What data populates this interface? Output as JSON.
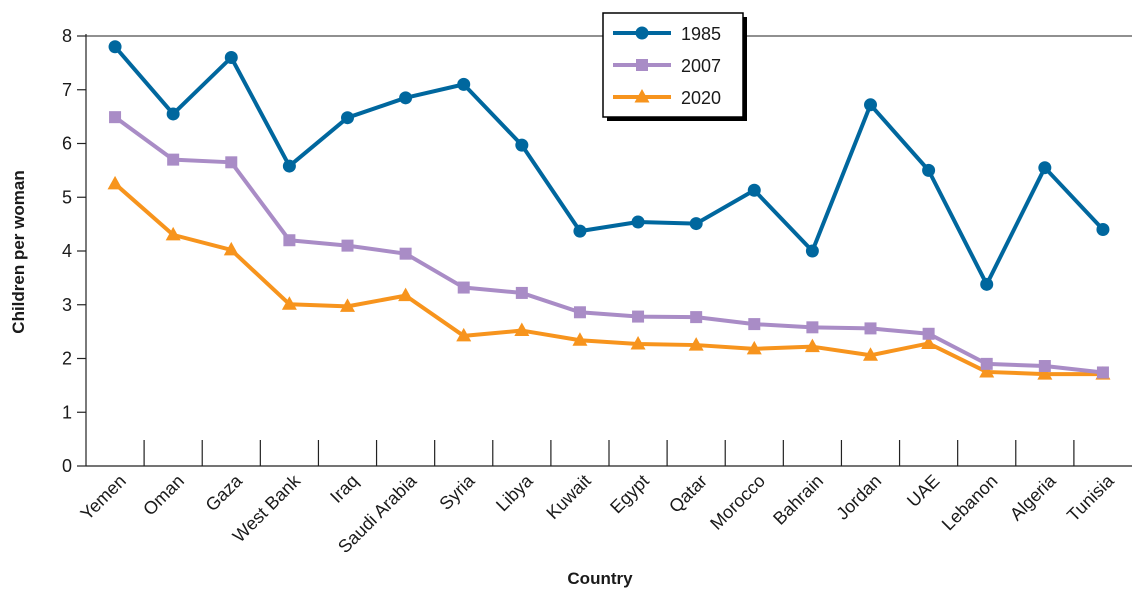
{
  "chart_data": {
    "type": "line",
    "title": "",
    "xlabel": "Country",
    "ylabel": "Children per woman",
    "ylim": [
      0,
      8
    ],
    "yticks": [
      0,
      1,
      2,
      3,
      4,
      5,
      6,
      7,
      8
    ],
    "grid": false,
    "legend_position": "top-center",
    "categories": [
      "Yemen",
      "Oman",
      "Gaza",
      "West Bank",
      "Iraq",
      "Saudi Arabia",
      "Syria",
      "Libya",
      "Kuwait",
      "Egypt",
      "Qatar",
      "Morocco",
      "Bahrain",
      "Jordan",
      "UAE",
      "Lebanon",
      "Algeria",
      "Tunisia"
    ],
    "series": [
      {
        "name": "1985",
        "marker": "circle",
        "color": "#00679e",
        "values": [
          7.8,
          6.55,
          7.6,
          5.58,
          6.48,
          6.85,
          7.1,
          5.97,
          4.37,
          4.54,
          4.51,
          5.13,
          4.0,
          6.72,
          5.5,
          3.38,
          5.55,
          4.4
        ]
      },
      {
        "name": "2007",
        "marker": "square",
        "color": "#a98cc6",
        "values": [
          6.49,
          5.7,
          5.65,
          4.2,
          4.1,
          3.95,
          3.32,
          3.22,
          2.86,
          2.78,
          2.77,
          2.64,
          2.58,
          2.56,
          2.46,
          1.9,
          1.86,
          1.74
        ]
      },
      {
        "name": "2020",
        "marker": "triangle",
        "color": "#f7941d",
        "values": [
          5.25,
          4.3,
          4.02,
          3.01,
          2.97,
          3.17,
          2.42,
          2.52,
          2.34,
          2.27,
          2.25,
          2.18,
          2.22,
          2.06,
          2.28,
          1.75,
          1.71,
          1.71
        ]
      }
    ]
  }
}
